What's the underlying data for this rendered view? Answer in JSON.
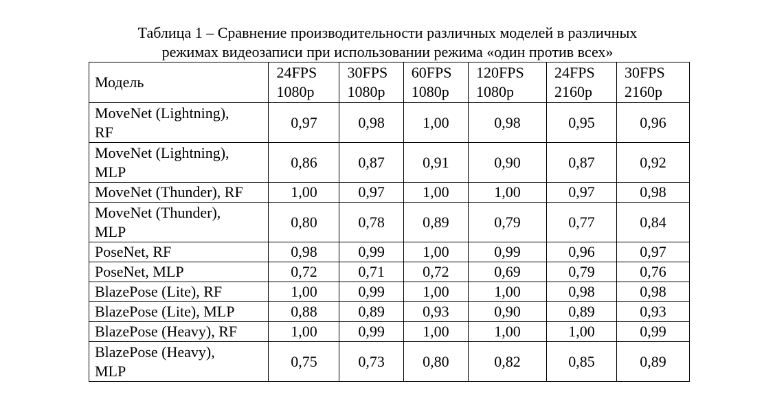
{
  "caption": {
    "line1": "Таблица 1 – Сравнение производительности различных моделей в различных",
    "line2": "режимах видеозаписи при использовании режима «один против всех»"
  },
  "table": {
    "model_header": "Модель",
    "columns": [
      {
        "fps": "24FPS",
        "res": "1080p"
      },
      {
        "fps": "30FPS",
        "res": "1080p"
      },
      {
        "fps": "60FPS",
        "res": "1080p"
      },
      {
        "fps": "120FPS",
        "res": "1080p"
      },
      {
        "fps": "24FPS",
        "res": "2160p"
      },
      {
        "fps": "30FPS",
        "res": "2160p"
      }
    ],
    "rows": [
      {
        "model_l1": "MoveNet (Lightning),",
        "model_l2": "RF",
        "values": [
          "0,97",
          "0,98",
          "1,00",
          "0,98",
          "0,95",
          "0,96"
        ]
      },
      {
        "model_l1": "MoveNet (Lightning),",
        "model_l2": "MLP",
        "values": [
          "0,86",
          "0,87",
          "0,91",
          "0,90",
          "0,87",
          "0,92"
        ]
      },
      {
        "model_l1": "MoveNet (Thunder), RF",
        "model_l2": "",
        "values": [
          "1,00",
          "0,97",
          "1,00",
          "1,00",
          "0,97",
          "0,98"
        ]
      },
      {
        "model_l1": "MoveNet (Thunder),",
        "model_l2": "MLP",
        "values": [
          "0,80",
          "0,78",
          "0,89",
          "0,79",
          "0,77",
          "0,84"
        ]
      },
      {
        "model_l1": "PoseNet, RF",
        "model_l2": "",
        "values": [
          "0,98",
          "0,99",
          "1,00",
          "0,99",
          "0,96",
          "0,97"
        ]
      },
      {
        "model_l1": "PoseNet, MLP",
        "model_l2": "",
        "values": [
          "0,72",
          "0,71",
          "0,72",
          "0,69",
          "0,79",
          "0,76"
        ]
      },
      {
        "model_l1": "BlazePose (Lite), RF",
        "model_l2": "",
        "values": [
          "1,00",
          "0,99",
          "1,00",
          "1,00",
          "0,98",
          "0,98"
        ]
      },
      {
        "model_l1": "BlazePose (Lite), MLP",
        "model_l2": "",
        "values": [
          "0,88",
          "0,89",
          "0,93",
          "0,90",
          "0,89",
          "0,93"
        ]
      },
      {
        "model_l1": "BlazePose (Heavy), RF",
        "model_l2": "",
        "values": [
          "1,00",
          "0,99",
          "1,00",
          "1,00",
          "1,00",
          "0,99"
        ]
      },
      {
        "model_l1": "BlazePose (Heavy),",
        "model_l2": "MLP",
        "values": [
          "0,75",
          "0,73",
          "0,80",
          "0,82",
          "0,85",
          "0,89"
        ]
      }
    ]
  }
}
